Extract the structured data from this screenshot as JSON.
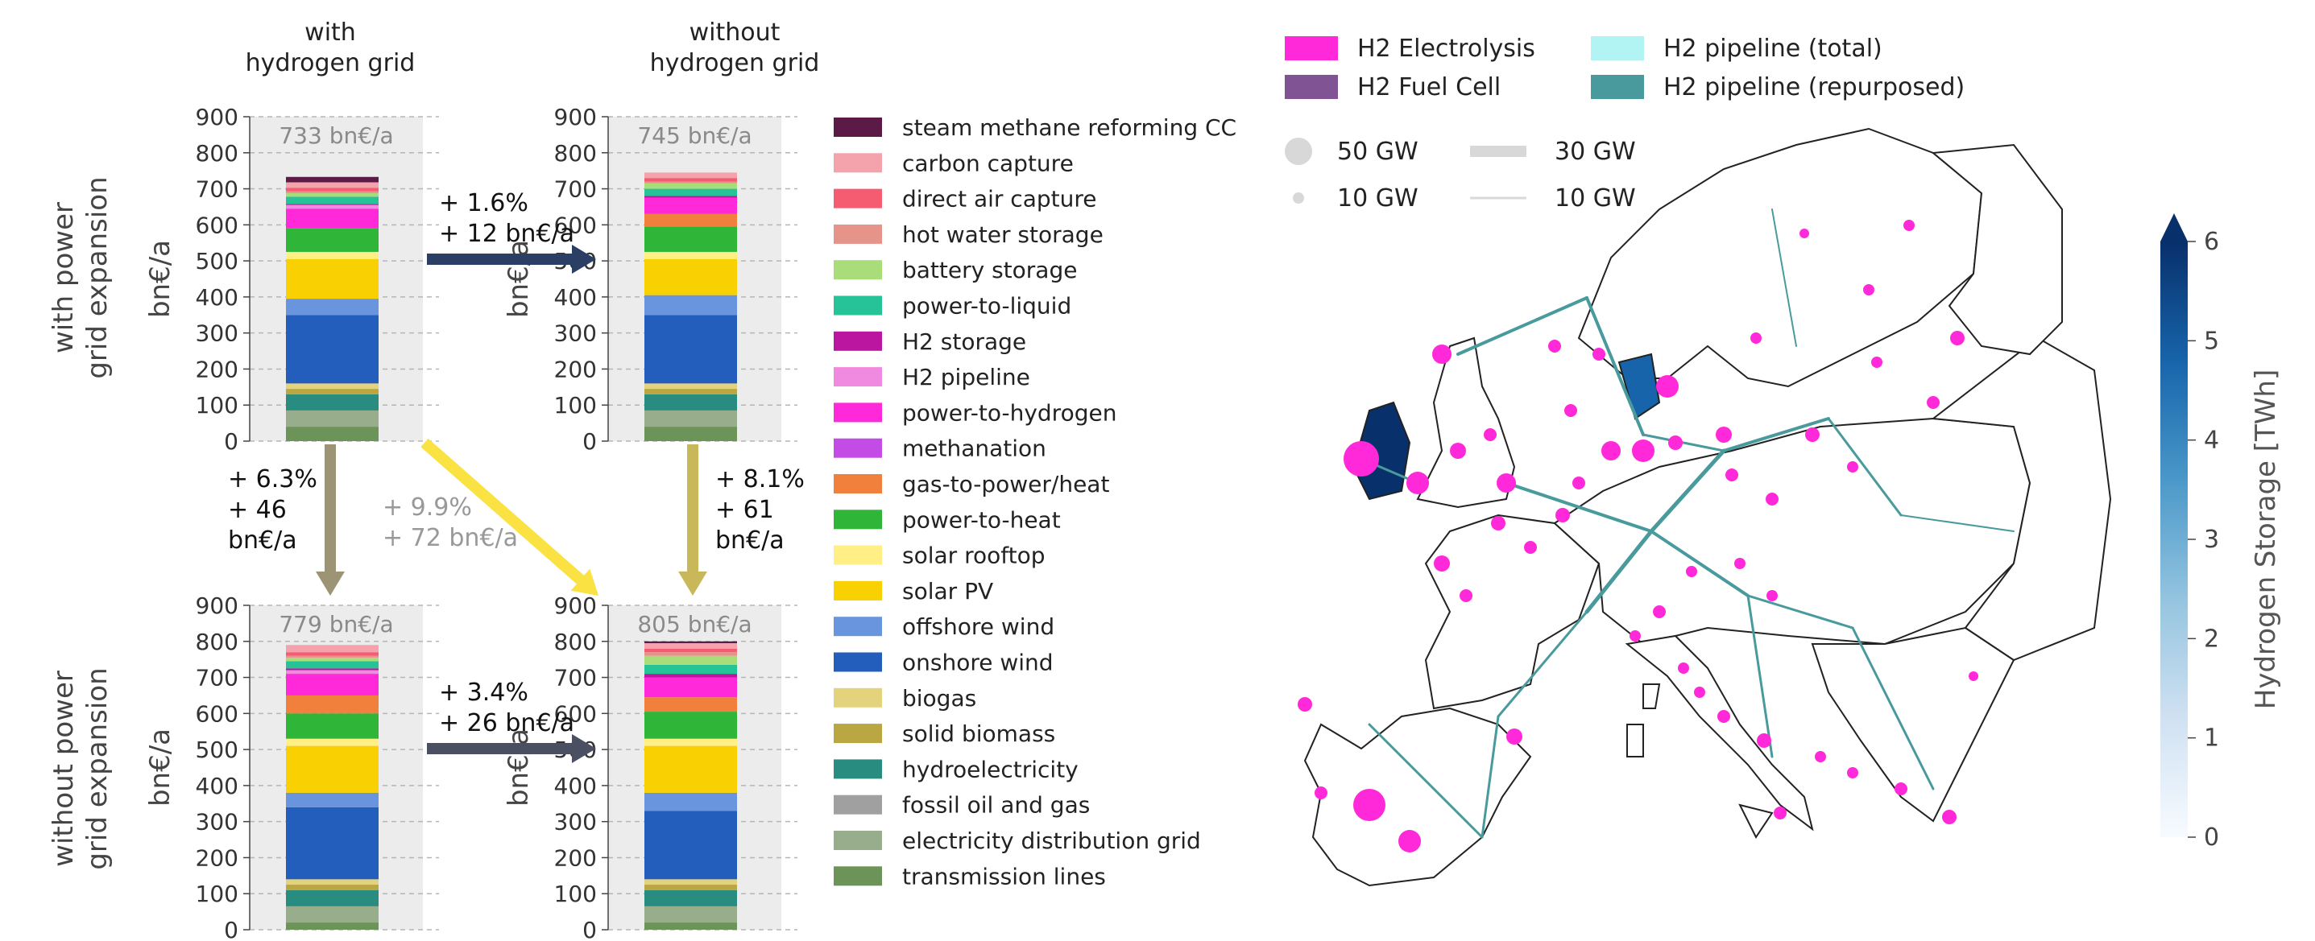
{
  "chart_data": {
    "type": "bar",
    "unit": "bn€/a",
    "ylabel": "bn€/a",
    "ylim": [
      0,
      900
    ],
    "yticks": [
      0,
      100,
      200,
      300,
      400,
      500,
      600,
      700,
      800,
      900
    ],
    "column_headers": [
      "with\nhydrogen grid",
      "without\nhydrogen grid"
    ],
    "row_headers": [
      "with power\ngrid expansion",
      "without power\ngrid expansion"
    ],
    "legend": [
      {
        "name": "steam methane reforming CC",
        "color": "#5c1a47"
      },
      {
        "name": "carbon capture",
        "color": "#f4a3ad"
      },
      {
        "name": "direct air capture",
        "color": "#f55c72"
      },
      {
        "name": "hot water storage",
        "color": "#e6938a"
      },
      {
        "name": "battery storage",
        "color": "#a8dd7a"
      },
      {
        "name": "power-to-liquid",
        "color": "#25c397"
      },
      {
        "name": "H2 storage",
        "color": "#bb169f"
      },
      {
        "name": "H2 pipeline",
        "color": "#f08ae0"
      },
      {
        "name": "power-to-hydrogen",
        "color": "#ff29d9"
      },
      {
        "name": "methanation",
        "color": "#c44ce6"
      },
      {
        "name": "gas-to-power/heat",
        "color": "#f0803c"
      },
      {
        "name": "power-to-heat",
        "color": "#2fb537"
      },
      {
        "name": "solar rooftop",
        "color": "#ffef85"
      },
      {
        "name": "solar PV",
        "color": "#f9d002"
      },
      {
        "name": "offshore wind",
        "color": "#6895dd"
      },
      {
        "name": "onshore wind",
        "color": "#235ebc"
      },
      {
        "name": "biogas",
        "color": "#e3d37d"
      },
      {
        "name": "solid biomass",
        "color": "#baa741"
      },
      {
        "name": "hydroelectricity",
        "color": "#298c81"
      },
      {
        "name": "fossil oil and gas",
        "color": "#a0a0a0"
      },
      {
        "name": "electricity distribution grid",
        "color": "#97ad8c"
      },
      {
        "name": "transmission lines",
        "color": "#6c9459"
      }
    ],
    "scenarios": [
      {
        "name": "with power grid expansion, with hydrogen grid",
        "total_label": "733 bn€/a",
        "values": {
          "transmission lines": 40,
          "electricity distribution grid": 45,
          "fossil oil and gas": 0,
          "hydroelectricity": 45,
          "solid biomass": 15,
          "biogas": 15,
          "onshore wind": 190,
          "offshore wind": 45,
          "solar PV": 110,
          "solar rooftop": 20,
          "power-to-heat": 65,
          "gas-to-power/heat": 0,
          "methanation": 0,
          "power-to-hydrogen": 55,
          "H2 pipeline": 10,
          "H2 storage": 3,
          "power-to-liquid": 20,
          "battery storage": 10,
          "hot water storage": 5,
          "direct air capture": 10,
          "carbon capture": 15,
          "steam methane reforming CC": 15
        }
      },
      {
        "name": "with power grid expansion, without hydrogen grid",
        "total_label": "745 bn€/a",
        "values": {
          "transmission lines": 40,
          "electricity distribution grid": 45,
          "fossil oil and gas": 0,
          "hydroelectricity": 45,
          "solid biomass": 15,
          "biogas": 15,
          "onshore wind": 190,
          "offshore wind": 55,
          "solar PV": 100,
          "solar rooftop": 20,
          "power-to-heat": 70,
          "gas-to-power/heat": 35,
          "methanation": 0,
          "power-to-hydrogen": 45,
          "H2 pipeline": 0,
          "H2 storage": 5,
          "power-to-liquid": 20,
          "battery storage": 15,
          "hot water storage": 5,
          "direct air capture": 10,
          "carbon capture": 15,
          "steam methane reforming CC": 0
        }
      },
      {
        "name": "without power grid expansion, with hydrogen grid",
        "total_label": "779 bn€/a",
        "values": {
          "transmission lines": 20,
          "electricity distribution grid": 45,
          "fossil oil and gas": 0,
          "hydroelectricity": 45,
          "solid biomass": 15,
          "biogas": 15,
          "onshore wind": 200,
          "offshore wind": 40,
          "solar PV": 130,
          "solar rooftop": 20,
          "power-to-heat": 70,
          "gas-to-power/heat": 50,
          "methanation": 0,
          "power-to-hydrogen": 60,
          "H2 pipeline": 10,
          "H2 storage": 5,
          "power-to-liquid": 20,
          "battery storage": 10,
          "hot water storage": 5,
          "direct air capture": 10,
          "carbon capture": 20,
          "steam methane reforming CC": 0
        }
      },
      {
        "name": "without power grid expansion, without hydrogen grid",
        "total_label": "805 bn€/a",
        "values": {
          "transmission lines": 20,
          "electricity distribution grid": 45,
          "fossil oil and gas": 0,
          "hydroelectricity": 45,
          "solid biomass": 15,
          "biogas": 15,
          "onshore wind": 190,
          "offshore wind": 50,
          "solar PV": 130,
          "solar rooftop": 20,
          "power-to-heat": 75,
          "gas-to-power/heat": 40,
          "methanation": 0,
          "power-to-hydrogen": 55,
          "H2 pipeline": 0,
          "H2 storage": 10,
          "power-to-liquid": 25,
          "battery storage": 25,
          "hot water storage": 10,
          "direct air capture": 10,
          "carbon capture": 15,
          "steam methane reforming CC": 5
        }
      }
    ],
    "arrows": [
      {
        "from": 0,
        "to": 1,
        "label": [
          "+ 1.6%",
          "+ 12 bn€/a"
        ],
        "color": "#2a3f63"
      },
      {
        "from": 0,
        "to": 2,
        "label": [
          "+ 6.3%",
          "+ 46",
          "bn€/a"
        ],
        "color": "#9c9475"
      },
      {
        "from": 0,
        "to": 3,
        "label": [
          "+ 9.9%",
          "+ 72 bn€/a"
        ],
        "color": "#fae242"
      },
      {
        "from": 1,
        "to": 3,
        "label": [
          "+ 8.1%",
          "+ 61",
          "bn€/a"
        ],
        "color": "#c8b85a"
      },
      {
        "from": 2,
        "to": 3,
        "label": [
          "+ 3.4%",
          "+ 26 bn€/a"
        ],
        "color": "#4a5062"
      }
    ],
    "map": {
      "legend_items": [
        {
          "name": "H2 Electrolysis",
          "color": "#ff29d9"
        },
        {
          "name": "H2 Fuel Cell",
          "color": "#805394"
        },
        {
          "name": "H2 pipeline (total)",
          "color": "#b2f4f4"
        },
        {
          "name": "H2 pipeline (repurposed)",
          "color": "#499a9c"
        }
      ],
      "size_legend": [
        "50 GW",
        "10 GW"
      ],
      "line_legend": [
        "30 GW",
        "10 GW"
      ],
      "colorbar": {
        "label": "Hydrogen Storage [TWh]",
        "range": [
          0,
          6
        ],
        "ticks": [
          0,
          1,
          2,
          3,
          4,
          5,
          6
        ]
      }
    }
  }
}
